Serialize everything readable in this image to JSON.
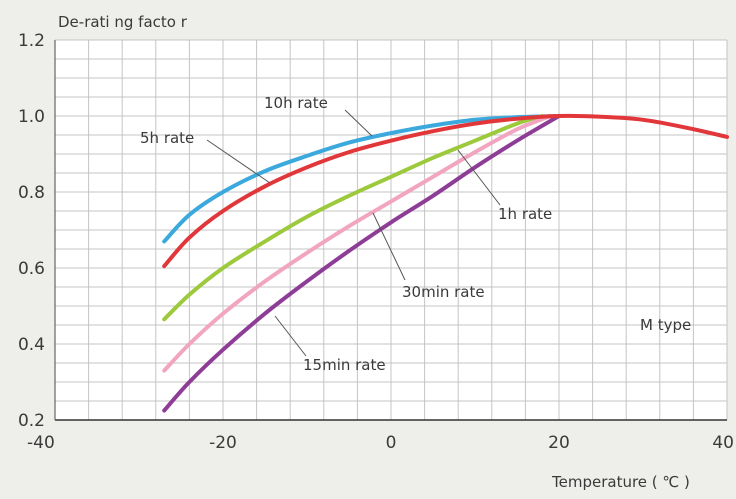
{
  "chart_data": {
    "type": "line",
    "title": "",
    "ylabel": "De-rati ng facto r",
    "xlabel": "Temperature ( ℃ )",
    "annotation": "M  type",
    "xlim": [
      -40,
      40
    ],
    "ylim": [
      0.2,
      1.2
    ],
    "x_ticks": [
      -40,
      -20,
      0,
      20,
      40
    ],
    "y_ticks": [
      0.2,
      0.4,
      0.6,
      0.8,
      1.0,
      1.2
    ],
    "y_tick_labels": [
      "0.2",
      "0.4",
      "0.6",
      "0.8",
      "1.0",
      "1.2"
    ],
    "grid": true,
    "series": [
      {
        "name": "10h rate",
        "color": "#3ba9dd",
        "x": [
          -27,
          -24,
          -20,
          -15,
          -10,
          -5,
          0,
          5,
          10,
          15,
          20
        ],
        "y": [
          0.67,
          0.74,
          0.8,
          0.855,
          0.895,
          0.93,
          0.955,
          0.975,
          0.99,
          0.997,
          1.0
        ]
      },
      {
        "name": "5h rate",
        "color": "#e2373a",
        "x": [
          -27,
          -24,
          -20,
          -15,
          -10,
          -5,
          0,
          5,
          10,
          15,
          20,
          25,
          30,
          35,
          40
        ],
        "y": [
          0.605,
          0.68,
          0.75,
          0.815,
          0.865,
          0.905,
          0.935,
          0.96,
          0.98,
          0.993,
          1.0,
          0.998,
          0.99,
          0.97,
          0.945
        ]
      },
      {
        "name": "1h rate",
        "color": "#9dc93d",
        "x": [
          -27,
          -24,
          -20,
          -15,
          -10,
          -5,
          0,
          5,
          10,
          15,
          18
        ],
        "y": [
          0.465,
          0.53,
          0.6,
          0.67,
          0.735,
          0.79,
          0.84,
          0.89,
          0.935,
          0.98,
          1.0
        ]
      },
      {
        "name": "30min rate",
        "color": "#f2a5c0",
        "x": [
          -27,
          -24,
          -20,
          -15,
          -10,
          -5,
          0,
          5,
          10,
          15,
          19
        ],
        "y": [
          0.33,
          0.4,
          0.48,
          0.565,
          0.64,
          0.71,
          0.775,
          0.84,
          0.905,
          0.965,
          1.0
        ]
      },
      {
        "name": "15min rate",
        "color": "#8e3d96",
        "x": [
          -27,
          -24,
          -20,
          -15,
          -10,
          -5,
          0,
          5,
          10,
          15,
          20
        ],
        "y": [
          0.225,
          0.3,
          0.385,
          0.48,
          0.565,
          0.645,
          0.72,
          0.79,
          0.865,
          0.935,
          1.0
        ]
      }
    ],
    "labels": [
      {
        "text": "10h rate",
        "series": "10h rate"
      },
      {
        "text": "5h rate",
        "series": "5h rate"
      },
      {
        "text": "1h rate",
        "series": "1h rate"
      },
      {
        "text": "30min rate",
        "series": "30min rate"
      },
      {
        "text": "15min rate",
        "series": "15min rate"
      }
    ]
  }
}
